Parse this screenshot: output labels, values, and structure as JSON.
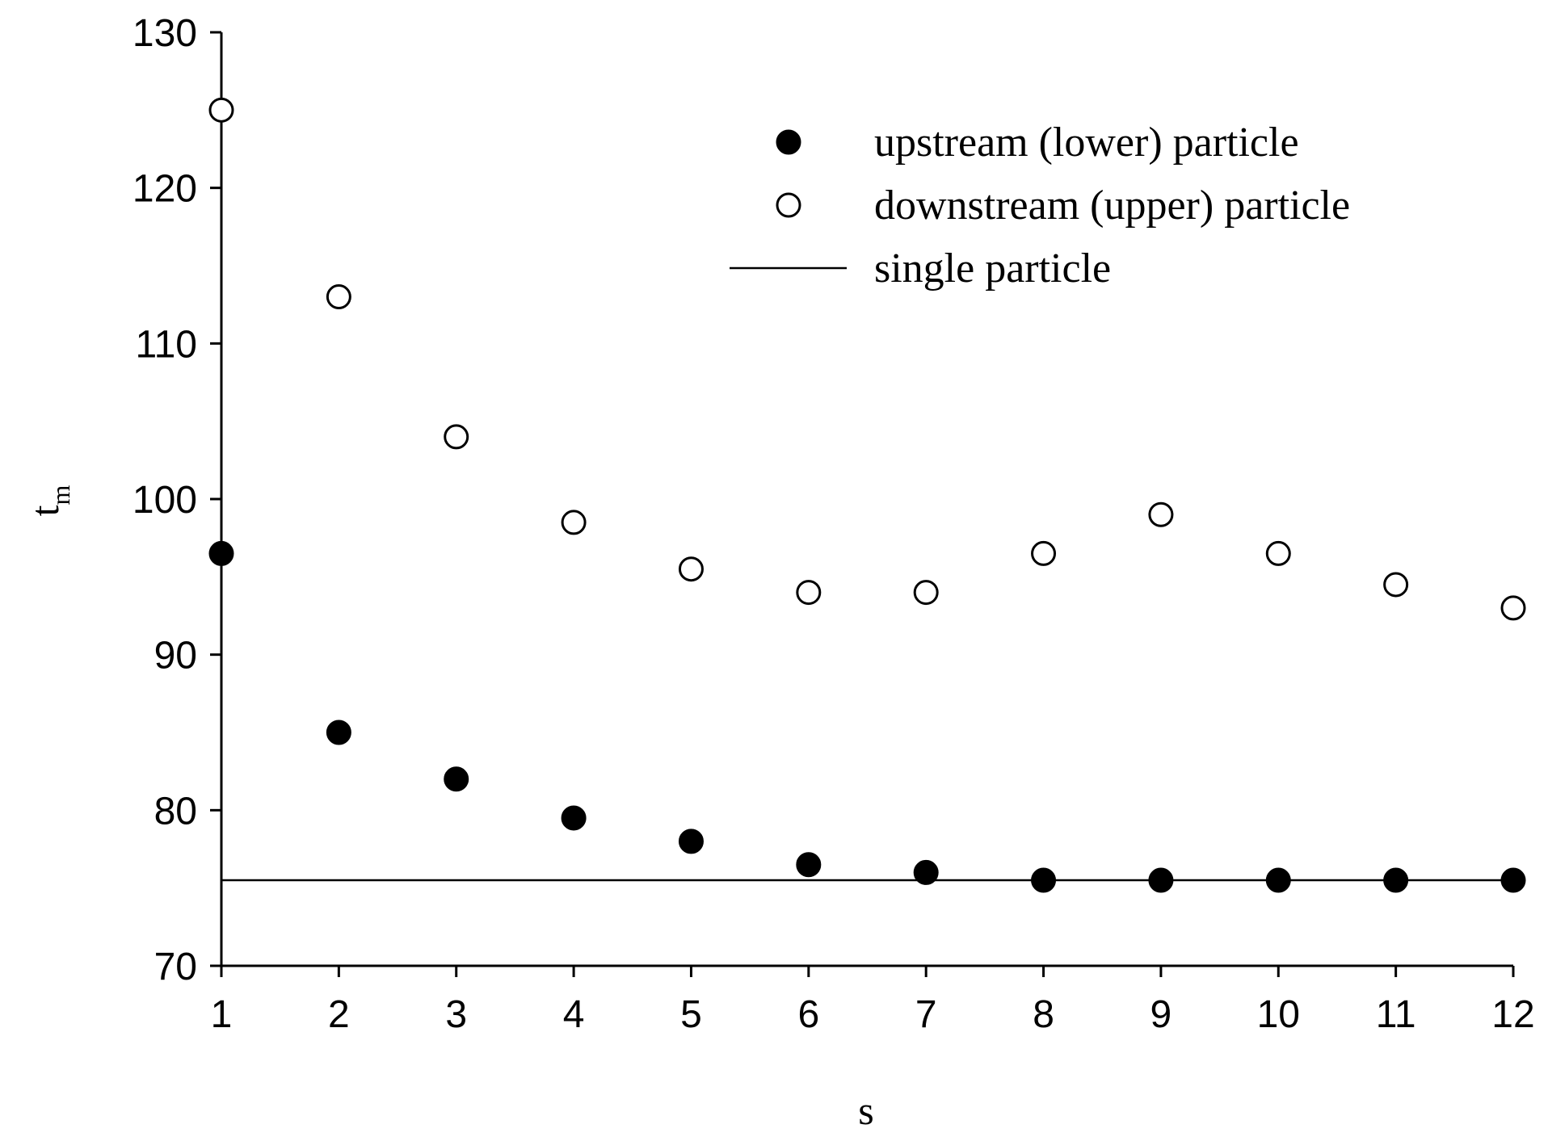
{
  "chart_data": {
    "type": "scatter",
    "title": "",
    "xlabel": "s",
    "ylabel": "t",
    "ylabel_subscript": "m",
    "xlim": [
      1,
      12
    ],
    "ylim": [
      70,
      130
    ],
    "xticks": [
      1,
      2,
      3,
      4,
      5,
      6,
      7,
      8,
      9,
      10,
      11,
      12
    ],
    "yticks": [
      70,
      80,
      90,
      100,
      110,
      120,
      130
    ],
    "grid": false,
    "legend_position": "top-right",
    "series": [
      {
        "name": "upstream (lower) particle",
        "marker": "filled-circle",
        "color": "#000000",
        "x": [
          1,
          2,
          3,
          4,
          5,
          6,
          7,
          8,
          9,
          10,
          11,
          12
        ],
        "y": [
          96.5,
          85,
          82,
          79.5,
          78,
          76.5,
          76,
          75.5,
          75.5,
          75.5,
          75.5,
          75.5
        ]
      },
      {
        "name": "downstream (upper) particle",
        "marker": "open-circle",
        "color": "#000000",
        "x": [
          1,
          2,
          3,
          4,
          5,
          6,
          7,
          8,
          9,
          10,
          11,
          12
        ],
        "y": [
          125,
          113,
          104,
          98.5,
          95.5,
          94,
          94,
          96.5,
          99,
          96.5,
          94.5,
          93
        ]
      },
      {
        "name": "single particle",
        "marker": "line",
        "color": "#000000",
        "y_constant": 75.5
      }
    ]
  }
}
